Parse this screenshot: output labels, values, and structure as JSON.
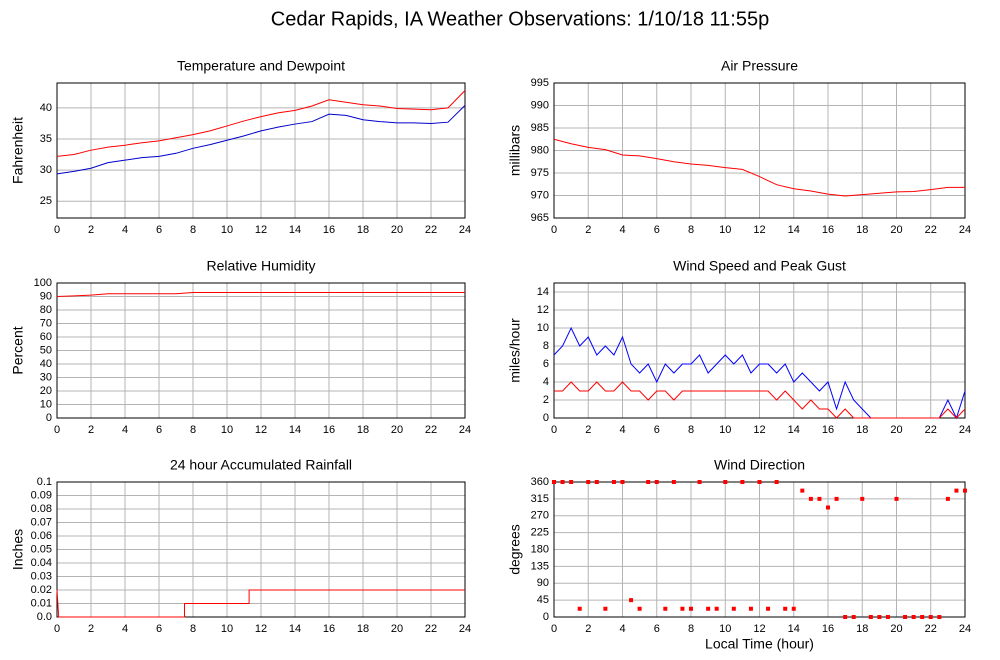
{
  "title": "Cedar Rapids, IA Weather Observations: 1/10/18 11:55p",
  "chart_data": [
    {
      "type": "line",
      "title": "Temperature and Dewpoint",
      "ylabel": "Fahrenheit",
      "x": [
        0,
        1,
        2,
        3,
        4,
        5,
        6,
        7,
        8,
        9,
        10,
        11,
        12,
        13,
        14,
        15,
        16,
        17,
        18,
        19,
        20,
        21,
        22,
        23,
        24
      ],
      "series": [
        {
          "color": "#ff0000",
          "values": [
            32.2,
            32.5,
            33.2,
            33.7,
            34.0,
            34.4,
            34.7,
            35.2,
            35.7,
            36.3,
            37.1,
            37.9,
            38.6,
            39.2,
            39.6,
            40.3,
            41.3,
            40.9,
            40.5,
            40.3,
            39.9,
            39.8,
            39.7,
            40.0,
            42.8
          ]
        },
        {
          "color": "#0000cc",
          "values": [
            29.4,
            29.8,
            30.3,
            31.2,
            31.6,
            32.0,
            32.2,
            32.7,
            33.5,
            34.1,
            34.8,
            35.5,
            36.3,
            36.9,
            37.4,
            37.8,
            39.0,
            38.8,
            38.1,
            37.8,
            37.6,
            37.6,
            37.5,
            37.7,
            40.4
          ]
        }
      ],
      "xlim": [
        0,
        24
      ],
      "xticks": [
        0,
        2,
        4,
        6,
        8,
        10,
        12,
        14,
        16,
        18,
        20,
        22,
        24
      ],
      "ylim": [
        22.3,
        44
      ],
      "yticks": [
        25,
        30,
        35,
        40
      ],
      "grid": true
    },
    {
      "type": "line",
      "title": "Air Pressure",
      "ylabel": "millibars",
      "x": [
        0,
        1,
        2,
        3,
        4,
        5,
        6,
        7,
        8,
        9,
        10,
        11,
        12,
        13,
        14,
        15,
        16,
        17,
        18,
        19,
        20,
        21,
        22,
        23,
        24
      ],
      "series": [
        {
          "color": "#ff0000",
          "values": [
            982.5,
            981.5,
            980.7,
            980.2,
            979.0,
            978.8,
            978.2,
            977.5,
            977.0,
            976.7,
            976.2,
            975.8,
            974.2,
            972.4,
            971.5,
            971.0,
            970.3,
            969.9,
            970.2,
            970.5,
            970.8,
            970.9,
            971.3,
            971.8,
            971.8
          ]
        }
      ],
      "xlim": [
        0,
        24
      ],
      "xticks": [
        0,
        2,
        4,
        6,
        8,
        10,
        12,
        14,
        16,
        18,
        20,
        22,
        24
      ],
      "ylim": [
        965,
        995
      ],
      "yticks": [
        965,
        970,
        975,
        980,
        985,
        990,
        995
      ],
      "grid": true
    },
    {
      "type": "line",
      "title": "Relative Humidity",
      "ylabel": "Percent",
      "x": [
        0,
        1,
        2,
        3,
        4,
        5,
        6,
        7,
        8,
        9,
        10,
        11,
        12,
        13,
        14,
        15,
        16,
        17,
        18,
        19,
        20,
        21,
        22,
        23,
        24
      ],
      "series": [
        {
          "color": "#ff0000",
          "values": [
            90,
            90.5,
            91,
            92,
            92,
            92,
            92,
            92,
            93,
            93,
            93,
            93,
            93,
            93,
            93,
            93,
            93,
            93,
            93,
            93,
            93,
            93,
            93,
            93,
            93
          ]
        }
      ],
      "xlim": [
        0,
        24
      ],
      "xticks": [
        0,
        2,
        4,
        6,
        8,
        10,
        12,
        14,
        16,
        18,
        20,
        22,
        24
      ],
      "ylim": [
        0,
        100
      ],
      "yticks": [
        0,
        10,
        20,
        30,
        40,
        50,
        60,
        70,
        80,
        90,
        100
      ],
      "grid": true
    },
    {
      "type": "line",
      "title": "Wind Speed and Peak Gust",
      "ylabel": "miles/hour",
      "x": [
        0,
        0.5,
        1,
        1.5,
        2,
        2.5,
        3,
        3.5,
        4,
        4.5,
        5,
        5.5,
        6,
        6.5,
        7,
        7.5,
        8,
        8.5,
        9,
        9.5,
        10,
        10.5,
        11,
        11.5,
        12,
        12.5,
        13,
        13.5,
        14,
        14.5,
        15,
        15.5,
        16,
        16.5,
        17,
        17.5,
        18,
        18.5,
        19,
        19.5,
        20,
        20.5,
        21,
        21.5,
        22,
        22.5,
        23,
        23.5,
        24
      ],
      "series": [
        {
          "color": "#0000ff",
          "values": [
            7,
            8,
            10,
            8,
            9,
            7,
            8,
            7,
            9,
            6,
            5,
            6,
            4,
            6,
            5,
            6,
            6,
            7,
            5,
            6,
            7,
            6,
            7,
            5,
            6,
            6,
            5,
            6,
            4,
            5,
            4,
            3,
            4,
            1,
            4,
            2,
            1,
            0,
            0,
            0,
            0,
            0,
            0,
            0,
            0,
            0,
            2,
            0,
            3
          ]
        },
        {
          "color": "#ff0000",
          "values": [
            3,
            3,
            4,
            3,
            3,
            4,
            3,
            3,
            4,
            3,
            3,
            2,
            3,
            3,
            2,
            3,
            3,
            3,
            3,
            3,
            3,
            3,
            3,
            3,
            3,
            3,
            2,
            3,
            2,
            1,
            2,
            1,
            1,
            0,
            1,
            0,
            0,
            0,
            0,
            0,
            0,
            0,
            0,
            0,
            0,
            0,
            1,
            0,
            1
          ]
        }
      ],
      "xlim": [
        0,
        24
      ],
      "xticks": [
        0,
        2,
        4,
        6,
        8,
        10,
        12,
        14,
        16,
        18,
        20,
        22,
        24
      ],
      "ylim": [
        0,
        15
      ],
      "yticks": [
        0,
        2,
        4,
        6,
        8,
        10,
        12,
        14
      ],
      "grid": true
    },
    {
      "type": "line",
      "title": "24 hour Accumulated Rainfall",
      "ylabel": "Inches",
      "x": [
        0,
        0.1,
        7.5,
        7.5,
        11.3,
        11.3,
        24
      ],
      "series": [
        {
          "color": "#ff0000",
          "values": [
            0.02,
            0,
            0,
            0.01,
            0.01,
            0.02,
            0.02
          ]
        }
      ],
      "xlim": [
        0,
        24
      ],
      "xticks": [
        0,
        2,
        4,
        6,
        8,
        10,
        12,
        14,
        16,
        18,
        20,
        22,
        24
      ],
      "ylim": [
        0,
        0.1
      ],
      "yticks": [
        {
          "value": 0,
          "label": "0.0"
        },
        0.01,
        0.02,
        0.03,
        0.04,
        0.05,
        0.06,
        0.07,
        0.08,
        0.09,
        0.1
      ],
      "grid": true
    },
    {
      "type": "scatter",
      "title": "Wind Direction",
      "ylabel": "degrees",
      "xlabel": "Local Time (hour)",
      "x": [
        0,
        0.5,
        1,
        1.5,
        2,
        2.5,
        3,
        3.5,
        4,
        4.5,
        5,
        5.5,
        6,
        6.5,
        7,
        7.5,
        8,
        8.5,
        9,
        9.5,
        10,
        10.5,
        11,
        11.5,
        12,
        12.5,
        13,
        13.5,
        14,
        14.5,
        15,
        15.5,
        16,
        16.5,
        17,
        17.5,
        18,
        18.5,
        19,
        19.5,
        20,
        20.5,
        21,
        21.5,
        22,
        22.5,
        23,
        23.5,
        24
      ],
      "series": [
        {
          "color": "#ff0000",
          "values": [
            360,
            360,
            360,
            22,
            360,
            360,
            22,
            360,
            360,
            45,
            22,
            360,
            360,
            22,
            360,
            22,
            22,
            360,
            22,
            22,
            360,
            22,
            360,
            22,
            360,
            22,
            360,
            22,
            22,
            337,
            315,
            315,
            292,
            315,
            0,
            0,
            315,
            0,
            0,
            0,
            315,
            0,
            0,
            0,
            0,
            0,
            315,
            337,
            337
          ]
        }
      ],
      "xlim": [
        0,
        24
      ],
      "xticks": [
        0,
        2,
        4,
        6,
        8,
        10,
        12,
        14,
        16,
        18,
        20,
        22,
        24
      ],
      "ylim": [
        0,
        360
      ],
      "yticks": [
        0,
        45,
        90,
        135,
        180,
        225,
        270,
        315,
        360
      ],
      "grid": true
    }
  ]
}
